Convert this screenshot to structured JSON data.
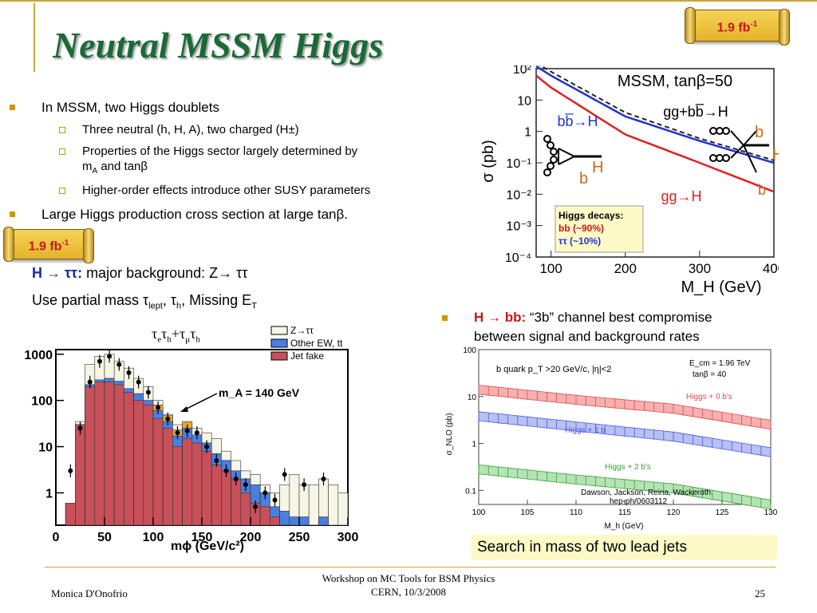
{
  "title": "Neutral MSSM Higgs",
  "badge_top": "1.9 fb",
  "badge_top_sup": "-1",
  "badge_left": "1.9 fb",
  "badge_left_sup": "-1",
  "bullets": {
    "b1": "In MSSM,  two Higgs doublets",
    "b1_subs": [
      "Three neutral (h, H, A), two charged (H±)",
      "Properties of the Higgs sector largely determined by",
      "Higher-order effects introduce other SUSY parameters"
    ],
    "b1_sub2_line2_a": "m",
    "b1_sub2_line2_sub": "A",
    "b1_sub2_line2_b": "  and tanβ",
    "b2": "Large Higgs production cross section at large tanβ."
  },
  "tautau": {
    "line1_bold": "H → ττ:",
    "line1_rest": " major background: Z→ ττ",
    "line2": "Use partial mass τ",
    "line2_sub1": "lept",
    "line2_mid": ", τ",
    "line2_sub2": "h",
    "line2_end": ", Missing E",
    "line2_sub3": "T"
  },
  "bb_bullet": {
    "bold": "H → bb:",
    "rest": " “3b” channel best compromise",
    "line2": "between signal and background rates"
  },
  "search_text": "Search in mass of two lead jets",
  "footer": {
    "author": "Monica D'Onofrio",
    "event_line1": "Workshop on MC Tools for BSM Physics",
    "event_line2": "CERN, 10/3/2008",
    "page": "25"
  },
  "colors": {
    "title": "#1a6a36",
    "bullet_marker": "#c89800",
    "badge_text": "#c81818",
    "blue_curve": "#2233cc",
    "red_curve": "#e02020",
    "jet_fake": "#c8505a",
    "other_ew": "#4a7fe0",
    "ztautau": "#f6f5e6"
  },
  "chart_data": [
    {
      "type": "line",
      "xlabel": "M_H (GeV)",
      "ylabel": "σ (pb)",
      "x_ticks": [
        "100",
        "200",
        "300",
        "400"
      ],
      "y_ticks": [
        "10²",
        "10",
        "1",
        "10⁻¹",
        "10⁻²",
        "10⁻³",
        "10⁻⁴"
      ],
      "xlim": [
        80,
        400
      ],
      "ylim_log10": [
        -4,
        2
      ],
      "header": "MSSM, tanβ=50",
      "series": [
        {
          "name": "gg+bb̅→H",
          "x": [
            80,
            100,
            200,
            300,
            400
          ],
          "y": [
            150,
            80,
            4.0,
            0.6,
            0.12
          ]
        },
        {
          "name": "bb̅→H",
          "x": [
            80,
            100,
            200,
            300,
            400
          ],
          "y": [
            120,
            60,
            3.0,
            0.5,
            0.1
          ]
        },
        {
          "name": "gg→H",
          "x": [
            80,
            100,
            200,
            300,
            400
          ],
          "y": [
            60,
            25,
            0.8,
            0.1,
            0.012
          ]
        }
      ],
      "labels": {
        "b_left": "b",
        "H_left": "H",
        "b_right_top": "b",
        "H_right": "H",
        "b_right_bottom": "b"
      },
      "decays": {
        "title": "Higgs decays:",
        "bb": "bb (~90%)",
        "tautau": "ττ  (~10%)"
      }
    },
    {
      "type": "bar",
      "title_parts": {
        "a": "τ",
        "a_sub": "e",
        "b": "τ",
        "b_sub": "h",
        "plus": "+τ",
        "c_sub": "μ",
        "d": "τ",
        "d_sub": "h"
      },
      "xlabel": "mϕ  (GeV/c²)",
      "x_ticks": [
        "0",
        "50",
        "100",
        "150",
        "200",
        "250",
        "300"
      ],
      "y_ticks": [
        "1000",
        "100",
        "10",
        "1"
      ],
      "ylim_log10": [
        -0.7,
        3.1
      ],
      "xlim": [
        0,
        300
      ],
      "annotation": "m_A = 140 GeV",
      "legend": [
        "Z→ττ",
        "Other EW, tt",
        "Jet fake"
      ],
      "bin_width": 10,
      "bin_starts": [
        10,
        20,
        30,
        40,
        50,
        60,
        70,
        80,
        90,
        100,
        110,
        120,
        130,
        140,
        150,
        160,
        170,
        180,
        190,
        200,
        210,
        220,
        230,
        240,
        250,
        260,
        270,
        280,
        290
      ],
      "jet_fake": [
        0.6,
        30,
        200,
        250,
        250,
        220,
        150,
        100,
        80,
        40,
        25,
        10,
        15,
        12,
        8,
        4,
        3,
        2,
        1.0,
        0.6,
        0.5,
        0.3,
        0.2,
        0,
        0,
        0,
        0,
        0,
        0
      ],
      "other_ew": [
        0.6,
        30,
        220,
        280,
        300,
        260,
        180,
        140,
        100,
        60,
        35,
        17,
        25,
        18,
        12,
        7,
        5,
        3,
        2,
        1.5,
        1.0,
        0.5,
        0.4,
        0.3,
        0.3,
        0.2,
        0.3,
        0,
        0
      ],
      "ztautau": [
        0.6,
        35,
        600,
        900,
        1000,
        700,
        500,
        300,
        200,
        100,
        50,
        30,
        30,
        25,
        20,
        15,
        8,
        5,
        3,
        2.5,
        1.5,
        1,
        1.5,
        2.5,
        1.5,
        1.5,
        2,
        1.5,
        1
      ],
      "signal_extra": [
        0,
        0,
        0,
        0,
        0,
        0,
        0,
        0,
        0,
        20,
        12,
        6,
        10,
        0,
        0,
        0,
        0,
        0,
        0,
        0,
        0,
        0,
        0,
        0,
        0,
        0,
        0,
        0,
        0
      ],
      "data_x": [
        15,
        25,
        35,
        45,
        55,
        65,
        75,
        85,
        95,
        105,
        115,
        125,
        135,
        145,
        155,
        165,
        175,
        185,
        195,
        205,
        215,
        225,
        235,
        255,
        275
      ],
      "data_y": [
        3,
        25,
        250,
        700,
        900,
        600,
        400,
        250,
        150,
        70,
        40,
        20,
        22,
        20,
        10,
        5,
        3,
        2,
        1.5,
        0.5,
        1.0,
        0.7,
        2.5,
        1.5,
        2
      ]
    },
    {
      "type": "line",
      "xlabel": "M_h (GeV)",
      "ylabel": "σ_NLO (pb)",
      "x_ticks": [
        "100",
        "105",
        "110",
        "115",
        "120",
        "125",
        "130"
      ],
      "y_ticks": [
        "100",
        "10",
        "1",
        "0.1"
      ],
      "xlim": [
        100,
        130
      ],
      "ylim_log10": [
        -1.3,
        2
      ],
      "cut_label": "b quark p_T >20 GeV/c, |η|<2",
      "ecm_label": "E_cm = 1.96 TeV",
      "tanb_label": "tanβ = 40",
      "citation1": "Dawson, Jackson, Reina, Wackeroth",
      "citation2": "hep-ph/0603112",
      "series": [
        {
          "name": "Higgs + 0 b's",
          "x": [
            100,
            110,
            120,
            130
          ],
          "y": [
            14,
            8.5,
            5.5,
            2.5
          ]
        },
        {
          "name": "Higgs + 1 b",
          "x": [
            100,
            110,
            120,
            130
          ],
          "y": [
            3.8,
            2.3,
            1.4,
            0.65
          ]
        },
        {
          "name": "Higgs + 2 b's",
          "x": [
            100,
            110,
            120,
            130
          ],
          "y": [
            0.28,
            0.17,
            0.11,
            0.05
          ]
        }
      ]
    }
  ]
}
